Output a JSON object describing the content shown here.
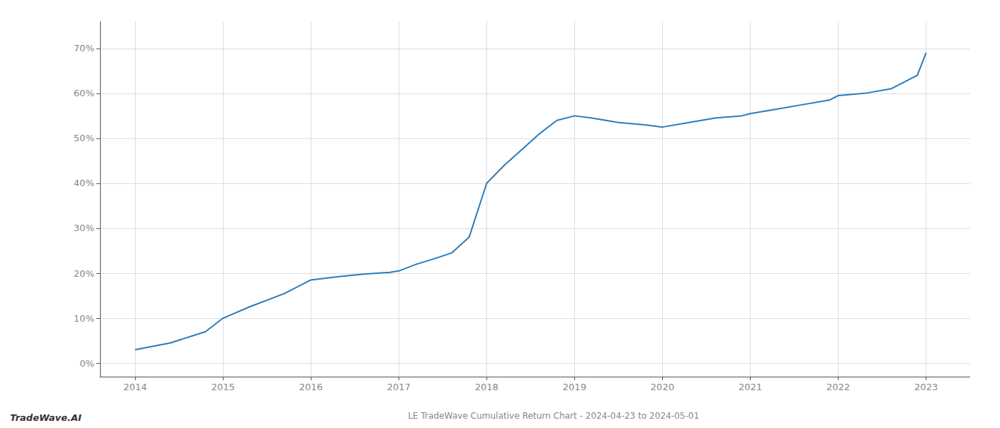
{
  "chart_data": {
    "type": "line",
    "title": "LE TradeWave Cumulative Return Chart - 2024-04-23 to 2024-05-01",
    "annotations": [
      "TradeWave.AI"
    ],
    "color": "#2b7bb9",
    "x": [
      2014.0,
      2014.4,
      2014.8,
      2015.0,
      2015.3,
      2015.7,
      2016.0,
      2016.3,
      2016.6,
      2016.9,
      2017.0,
      2017.2,
      2017.4,
      2017.6,
      2017.8,
      2018.0,
      2018.2,
      2018.4,
      2018.6,
      2018.8,
      2019.0,
      2019.2,
      2019.5,
      2019.8,
      2020.0,
      2020.3,
      2020.6,
      2020.9,
      2021.0,
      2021.3,
      2021.6,
      2021.9,
      2022.0,
      2022.3,
      2022.6,
      2022.9,
      2023.0
    ],
    "values": [
      3.0,
      4.5,
      7.0,
      10.0,
      12.5,
      15.5,
      18.5,
      19.2,
      19.8,
      20.2,
      20.5,
      22.0,
      23.2,
      24.5,
      28.0,
      40.0,
      44.0,
      47.5,
      51.0,
      54.0,
      55.0,
      54.5,
      53.5,
      53.0,
      52.5,
      53.5,
      54.5,
      55.0,
      55.5,
      56.5,
      57.5,
      58.5,
      59.5,
      60.0,
      61.0,
      64.0,
      69.0
    ],
    "xlim": [
      2013.6,
      2023.5
    ],
    "ylim": [
      -3,
      76
    ],
    "xticks": [
      2014,
      2015,
      2016,
      2017,
      2018,
      2019,
      2020,
      2021,
      2022,
      2023
    ],
    "yticks": [
      {
        "value": 0,
        "label": "0%"
      },
      {
        "value": 10,
        "label": "10%"
      },
      {
        "value": 20,
        "label": "20%"
      },
      {
        "value": 30,
        "label": "30%"
      },
      {
        "value": 40,
        "label": "40%"
      },
      {
        "value": 50,
        "label": "50%"
      },
      {
        "value": 60,
        "label": "60%"
      },
      {
        "value": 70,
        "label": "70%"
      }
    ],
    "grid": true
  }
}
